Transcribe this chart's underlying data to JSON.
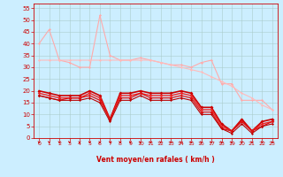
{
  "xlabel": "Vent moyen/en rafales ( km/h )",
  "background_color": "#cceeff",
  "grid_color": "#aacccc",
  "xlim": [
    -0.5,
    23.5
  ],
  "ylim": [
    0,
    57
  ],
  "yticks": [
    0,
    5,
    10,
    15,
    20,
    25,
    30,
    35,
    40,
    45,
    50,
    55
  ],
  "xticks": [
    0,
    1,
    2,
    3,
    4,
    5,
    6,
    7,
    8,
    9,
    10,
    11,
    12,
    13,
    14,
    15,
    16,
    17,
    18,
    19,
    20,
    21,
    22,
    23
  ],
  "series": [
    {
      "x": [
        0,
        1,
        2,
        3,
        4,
        5,
        6,
        7,
        8,
        9,
        10,
        11,
        12,
        13,
        14,
        15,
        16,
        17,
        18,
        19,
        20,
        21,
        22,
        23
      ],
      "y": [
        40,
        46,
        33,
        32,
        30,
        30,
        52,
        35,
        33,
        33,
        34,
        33,
        32,
        31,
        31,
        30,
        32,
        33,
        23,
        23,
        16,
        16,
        16,
        12
      ],
      "color": "#ffaaaa",
      "linewidth": 0.8,
      "marker": "D",
      "markersize": 1.5
    },
    {
      "x": [
        0,
        1,
        2,
        3,
        4,
        5,
        6,
        7,
        8,
        9,
        10,
        11,
        12,
        13,
        14,
        15,
        16,
        17,
        18,
        19,
        20,
        21,
        22,
        23
      ],
      "y": [
        33,
        33,
        33,
        33,
        33,
        33,
        33,
        33,
        33,
        33,
        33,
        33,
        32,
        31,
        30,
        29,
        28,
        26,
        24,
        22,
        19,
        17,
        14,
        12
      ],
      "color": "#ffbbbb",
      "linewidth": 0.8,
      "marker": "D",
      "markersize": 1.5
    },
    {
      "x": [
        0,
        1,
        2,
        3,
        4,
        5,
        6,
        7,
        8,
        9,
        10,
        11,
        12,
        13,
        14,
        15,
        16,
        17,
        18,
        19,
        20,
        21,
        22,
        23
      ],
      "y": [
        20,
        19,
        18,
        18,
        18,
        20,
        18,
        8,
        19,
        19,
        20,
        19,
        19,
        19,
        20,
        19,
        13,
        13,
        6,
        3,
        8,
        3,
        7,
        8
      ],
      "color": "#cc0000",
      "linewidth": 1.2,
      "marker": "D",
      "markersize": 2.0
    },
    {
      "x": [
        0,
        1,
        2,
        3,
        4,
        5,
        6,
        7,
        8,
        9,
        10,
        11,
        12,
        13,
        14,
        15,
        16,
        17,
        18,
        19,
        20,
        21,
        22,
        23
      ],
      "y": [
        19,
        18,
        17,
        17,
        17,
        19,
        17,
        8,
        18,
        18,
        19,
        18,
        18,
        18,
        19,
        18,
        12,
        12,
        5,
        3,
        7,
        3,
        6,
        7
      ],
      "color": "#ee2222",
      "linewidth": 1.0,
      "marker": "D",
      "markersize": 1.8
    },
    {
      "x": [
        0,
        1,
        2,
        3,
        4,
        5,
        6,
        7,
        8,
        9,
        10,
        11,
        12,
        13,
        14,
        15,
        16,
        17,
        18,
        19,
        20,
        21,
        22,
        23
      ],
      "y": [
        18,
        17,
        16,
        17,
        17,
        18,
        16,
        8,
        17,
        17,
        19,
        17,
        17,
        17,
        18,
        17,
        11,
        11,
        4,
        3,
        7,
        3,
        5,
        7
      ],
      "color": "#dd1111",
      "linewidth": 0.9,
      "marker": "D",
      "markersize": 1.8
    },
    {
      "x": [
        0,
        1,
        2,
        3,
        4,
        5,
        6,
        7,
        8,
        9,
        10,
        11,
        12,
        13,
        14,
        15,
        16,
        17,
        18,
        19,
        20,
        21,
        22,
        23
      ],
      "y": [
        18,
        17,
        16,
        16,
        16,
        17,
        15,
        7,
        16,
        16,
        18,
        16,
        16,
        16,
        17,
        16,
        10,
        10,
        4,
        2,
        6,
        2,
        5,
        6
      ],
      "color": "#bb0000",
      "linewidth": 0.8,
      "marker": "D",
      "markersize": 1.5
    }
  ],
  "arrow_color": "#cc0000",
  "tick_color": "#cc0000",
  "label_color": "#cc0000"
}
